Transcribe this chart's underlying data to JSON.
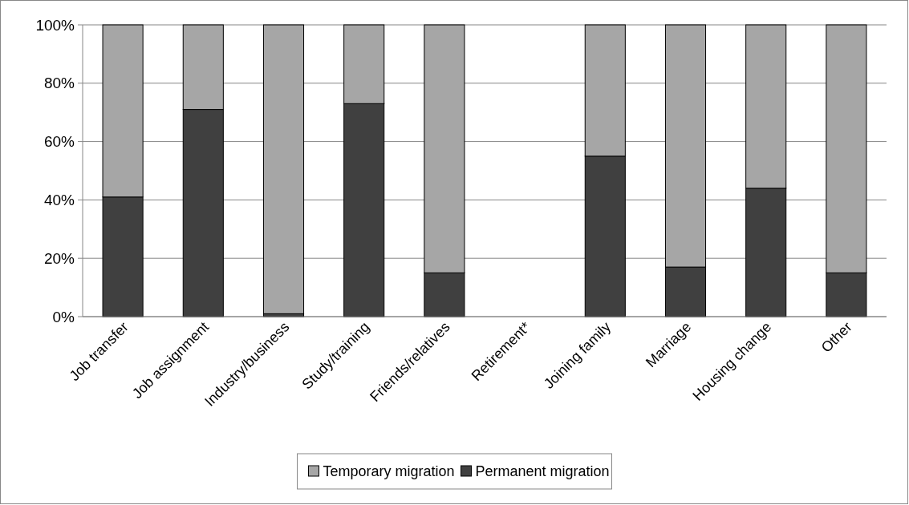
{
  "chart_data": {
    "type": "bar",
    "stacked": true,
    "categories": [
      "Job transfer",
      "Job assignment",
      "Industry/business",
      "Study/training",
      "Friends/relatives",
      "Retirement*",
      "Joining family",
      "Marriage",
      "Housing change",
      "Other"
    ],
    "series": [
      {
        "name": "Permanent migration",
        "color": "#404040",
        "values": [
          41,
          71,
          1,
          73,
          15,
          null,
          55,
          17,
          44,
          15
        ]
      },
      {
        "name": "Temporary migration",
        "color": "#a6a6a6",
        "values": [
          59,
          29,
          99,
          27,
          85,
          null,
          45,
          83,
          56,
          85
        ]
      }
    ],
    "ylim": [
      0,
      100
    ],
    "yticks": [
      {
        "value": 0,
        "label": "0%"
      },
      {
        "value": 20,
        "label": "20%"
      },
      {
        "value": 40,
        "label": "40%"
      },
      {
        "value": 60,
        "label": "60%"
      },
      {
        "value": 80,
        "label": "80%"
      },
      {
        "value": 100,
        "label": "100%"
      }
    ],
    "grid": "y",
    "legend": "bottom"
  }
}
